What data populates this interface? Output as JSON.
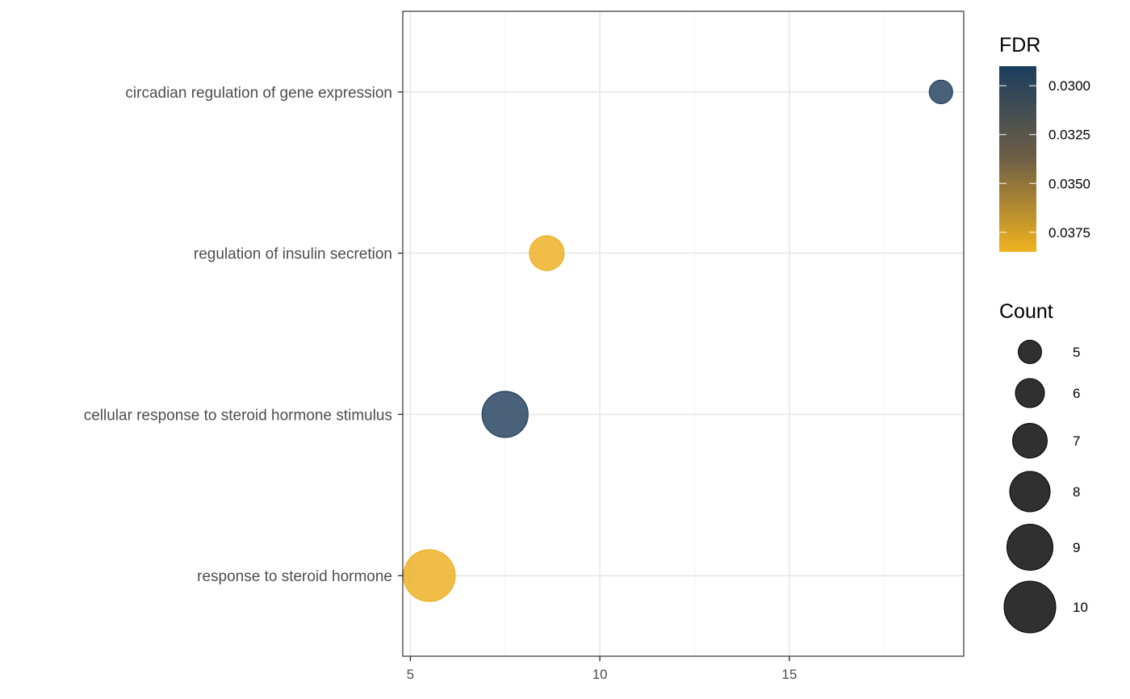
{
  "chart_data": {
    "type": "scatter",
    "title": "",
    "xlabel": "",
    "ylabel": "",
    "xlim": [
      4.8,
      19.6
    ],
    "x_ticks": [
      5,
      10,
      15
    ],
    "categories": [
      "circadian regulation of gene expression",
      "regulation of insulin secretion",
      "cellular response to steroid hormone stimulus",
      "response to steroid hormone"
    ],
    "points": [
      {
        "term": "circadian regulation of gene expression",
        "x": 19.0,
        "count": 5,
        "fdr": 0.0294
      },
      {
        "term": "regulation of insulin secretion",
        "x": 8.6,
        "count": 7,
        "fdr": 0.0383
      },
      {
        "term": "cellular response to steroid hormone stimulus",
        "x": 7.5,
        "count": 9,
        "fdr": 0.0294
      },
      {
        "term": "response to steroid hormone",
        "x": 5.5,
        "count": 10,
        "fdr": 0.0383
      }
    ],
    "grid": true,
    "legend_position": "right",
    "color_legend": {
      "title": "FDR",
      "ticks": [
        "0.0300",
        "0.0325",
        "0.0350",
        "0.0375"
      ],
      "tick_values": [
        0.03,
        0.0325,
        0.035,
        0.0375
      ],
      "range": [
        0.029,
        0.0385
      ],
      "low_color": "#1b3d5e",
      "mid_color": "#6f5f45",
      "high_color": "#f0b21e"
    },
    "size_legend": {
      "title": "Count",
      "values": [
        5,
        6,
        7,
        8,
        9,
        10
      ],
      "labels": [
        "5",
        "6",
        "7",
        "8",
        "9",
        "10"
      ],
      "color": "#1a1a1a"
    }
  }
}
